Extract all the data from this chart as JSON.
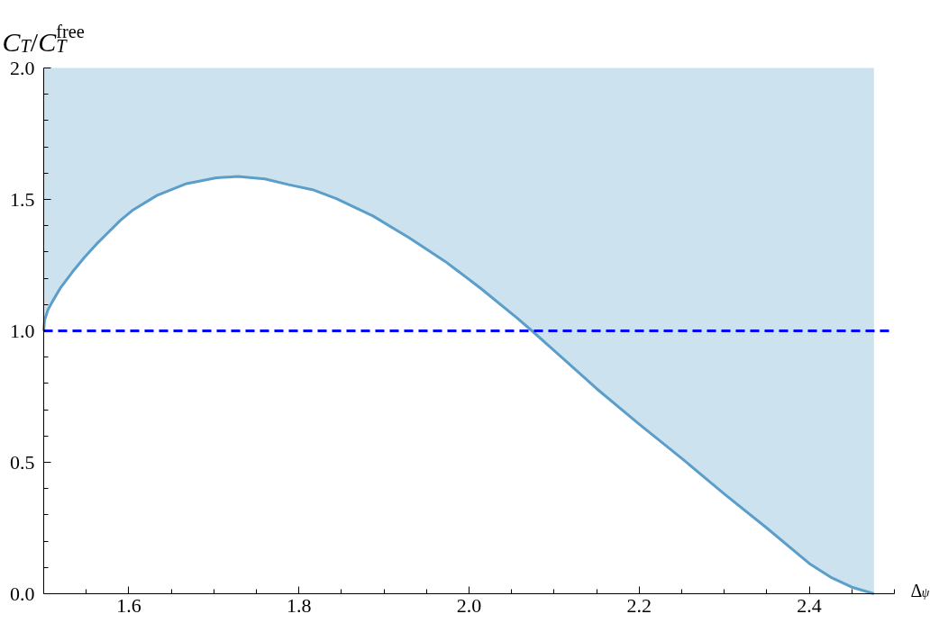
{
  "chart_data": {
    "type": "line",
    "xlabel": "Δ$_{ψ}$",
    "ylabel": "C$_{T}$/C$_{T}$$^{free}$",
    "xlim": [
      1.5,
      2.5
    ],
    "ylim": [
      0,
      2
    ],
    "xticks": [
      {
        "value": 1.55,
        "label": null
      },
      {
        "value": 1.6,
        "label": "1.6"
      },
      {
        "value": 1.65,
        "label": null
      },
      {
        "value": 1.7,
        "label": null
      },
      {
        "value": 1.75,
        "label": null
      },
      {
        "value": 1.8,
        "label": "1.8"
      },
      {
        "value": 1.85,
        "label": null
      },
      {
        "value": 1.9,
        "label": null
      },
      {
        "value": 1.95,
        "label": null
      },
      {
        "value": 2.0,
        "label": "2.0"
      },
      {
        "value": 2.05,
        "label": null
      },
      {
        "value": 2.1,
        "label": null
      },
      {
        "value": 2.15,
        "label": null
      },
      {
        "value": 2.2,
        "label": "2.2"
      },
      {
        "value": 2.25,
        "label": null
      },
      {
        "value": 2.3,
        "label": null
      },
      {
        "value": 2.35,
        "label": null
      },
      {
        "value": 2.4,
        "label": "2.4"
      },
      {
        "value": 2.45,
        "label": null
      },
      {
        "value": 2.5,
        "label": null
      }
    ],
    "yticks": [
      {
        "value": 0,
        "label": "0.0"
      },
      {
        "value": 0.1,
        "label": null
      },
      {
        "value": 0.2,
        "label": null
      },
      {
        "value": 0.3,
        "label": null
      },
      {
        "value": 0.4,
        "label": null
      },
      {
        "value": 0.5,
        "label": "0.5"
      },
      {
        "value": 0.6,
        "label": null
      },
      {
        "value": 0.7,
        "label": null
      },
      {
        "value": 0.8,
        "label": null
      },
      {
        "value": 0.9,
        "label": null
      },
      {
        "value": 1.0,
        "label": "1.0"
      },
      {
        "value": 1.1,
        "label": null
      },
      {
        "value": 1.2,
        "label": null
      },
      {
        "value": 1.3,
        "label": null
      },
      {
        "value": 1.4,
        "label": null
      },
      {
        "value": 1.5,
        "label": "1.5"
      },
      {
        "value": 1.6,
        "label": null
      },
      {
        "value": 1.7,
        "label": null
      },
      {
        "value": 1.8,
        "label": null
      },
      {
        "value": 1.9,
        "label": null
      },
      {
        "value": 2.0,
        "label": "2.0"
      }
    ],
    "series": [
      {
        "color": "#5b9ec9",
        "x": [
          1.5,
          1.501,
          1.505,
          1.51,
          1.52,
          1.534,
          1.548,
          1.562,
          1.576,
          1.59,
          1.605,
          1.633,
          1.668,
          1.703,
          1.728,
          1.76,
          1.788,
          1.816,
          1.844,
          1.887,
          1.929,
          1.972,
          2.014,
          2.056,
          2.074,
          2.1,
          2.15,
          2.2,
          2.25,
          2.3,
          2.35,
          2.4,
          2.425,
          2.45,
          2.476
        ],
        "values": [
          1.0,
          1.04,
          1.08,
          1.11,
          1.165,
          1.225,
          1.28,
          1.33,
          1.375,
          1.42,
          1.46,
          1.515,
          1.56,
          1.582,
          1.587,
          1.578,
          1.556,
          1.537,
          1.503,
          1.437,
          1.355,
          1.264,
          1.161,
          1.05,
          1.0,
          0.925,
          0.78,
          0.645,
          0.515,
          0.38,
          0.25,
          0.115,
          0.063,
          0.025,
          0.0
        ],
        "lower": [
          1.0,
          1.04,
          1.08,
          1.11,
          1.165,
          1.225,
          1.28,
          1.33,
          1.375,
          1.42,
          1.46,
          1.515,
          1.56,
          1.582,
          1.587,
          1.578,
          1.556,
          1.537,
          1.503,
          1.437,
          1.355,
          1.264,
          1.161,
          1.05,
          1.0,
          0.925,
          0.78,
          0.645,
          0.515,
          0.38,
          0.25,
          0.115,
          0.063,
          0.025,
          0.0
        ],
        "upper": [
          2,
          2,
          2,
          2,
          2,
          2,
          2,
          2,
          2,
          2,
          2,
          2,
          2,
          2,
          2,
          2,
          2,
          2,
          2,
          2,
          2,
          2,
          2,
          2,
          2,
          2,
          2,
          2,
          2,
          2,
          2,
          2,
          2,
          2,
          2
        ]
      }
    ],
    "ref_lines": [
      {
        "axis": "y",
        "value": 1.0,
        "color": "#0000ff",
        "line_style": "dashed"
      }
    ]
  }
}
